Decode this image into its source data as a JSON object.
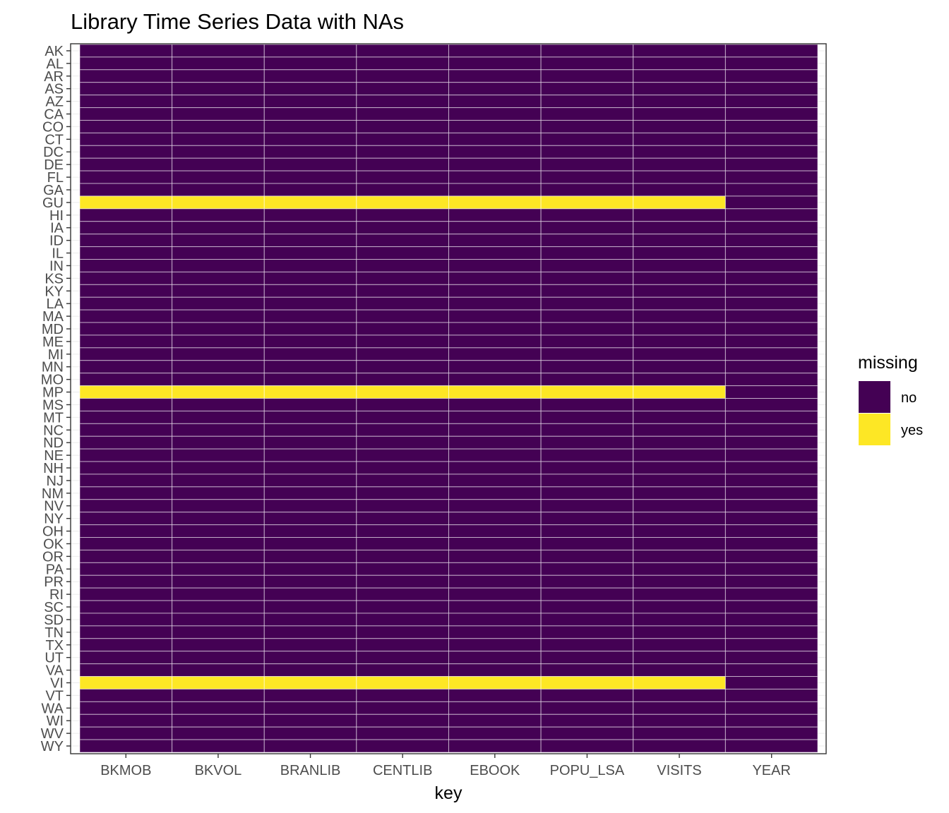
{
  "chart_data": {
    "type": "heatmap",
    "title": "Library Time Series Data with NAs",
    "xlabel": "key",
    "ylabel": "",
    "x": [
      "BKMOB",
      "BKVOL",
      "BRANLIB",
      "CENTLIB",
      "EBOOK",
      "POPU_LSA",
      "VISITS",
      "YEAR"
    ],
    "y": [
      "AK",
      "AL",
      "AR",
      "AS",
      "AZ",
      "CA",
      "CO",
      "CT",
      "DC",
      "DE",
      "FL",
      "GA",
      "GU",
      "HI",
      "IA",
      "ID",
      "IL",
      "IN",
      "KS",
      "KY",
      "LA",
      "MA",
      "MD",
      "ME",
      "MI",
      "MN",
      "MO",
      "MP",
      "MS",
      "MT",
      "NC",
      "ND",
      "NE",
      "NH",
      "NJ",
      "NM",
      "NV",
      "NY",
      "OH",
      "OK",
      "OR",
      "PA",
      "PR",
      "RI",
      "SC",
      "SD",
      "TN",
      "TX",
      "UT",
      "VA",
      "VI",
      "VT",
      "WA",
      "WI",
      "WV",
      "WY"
    ],
    "missing": [
      {
        "state": "GU",
        "keys": [
          "BKMOB",
          "BKVOL",
          "BRANLIB",
          "CENTLIB",
          "EBOOK",
          "POPU_LSA",
          "VISITS"
        ]
      },
      {
        "state": "MP",
        "keys": [
          "BKMOB",
          "BKVOL",
          "BRANLIB",
          "CENTLIB",
          "EBOOK",
          "POPU_LSA",
          "VISITS"
        ]
      },
      {
        "state": "VI",
        "keys": [
          "BKMOB",
          "BKVOL",
          "BRANLIB",
          "CENTLIB",
          "EBOOK",
          "POPU_LSA",
          "VISITS"
        ]
      }
    ],
    "legend": {
      "title": "missing",
      "position": "right",
      "entries": [
        {
          "label": "no",
          "color": "#440154"
        },
        {
          "label": "yes",
          "color": "#FDE725"
        }
      ]
    },
    "grid": true
  }
}
